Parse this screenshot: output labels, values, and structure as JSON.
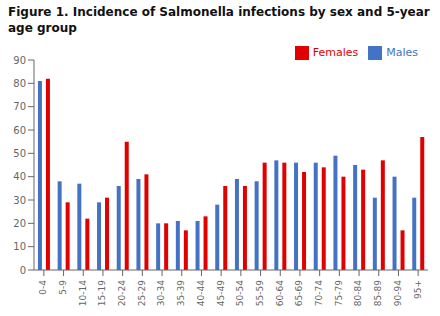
{
  "chart_data": {
    "type": "bar",
    "title": "Figure 1. Incidence of Salmonella infections by sex and 5-year age group",
    "categories": [
      "0-4",
      "5-9",
      "10-14",
      "15-19",
      "20-24",
      "25-29",
      "30-34",
      "35-39",
      "40-44",
      "45-49",
      "50-54",
      "55-59",
      "60-64",
      "65-69",
      "70-74",
      "75-79",
      "80-84",
      "85-89",
      "90-94",
      "95+"
    ],
    "series": [
      {
        "name": "Males",
        "color": "#4472C4",
        "values": [
          81,
          38,
          37,
          29,
          36,
          39,
          20,
          21,
          21,
          28,
          39,
          38,
          47,
          46,
          46,
          49,
          45,
          31,
          40,
          31
        ]
      },
      {
        "name": "Females",
        "color": "#E00000",
        "values": [
          82,
          29,
          22,
          31,
          55,
          41,
          20,
          17,
          23,
          36,
          36,
          46,
          46,
          42,
          44,
          40,
          43,
          47,
          17,
          57
        ]
      }
    ],
    "ylim": [
      0,
      90
    ],
    "yticks": [
      0,
      10,
      20,
      30,
      40,
      50,
      60,
      70,
      80,
      90
    ],
    "grid": false,
    "legend": "upper right"
  }
}
